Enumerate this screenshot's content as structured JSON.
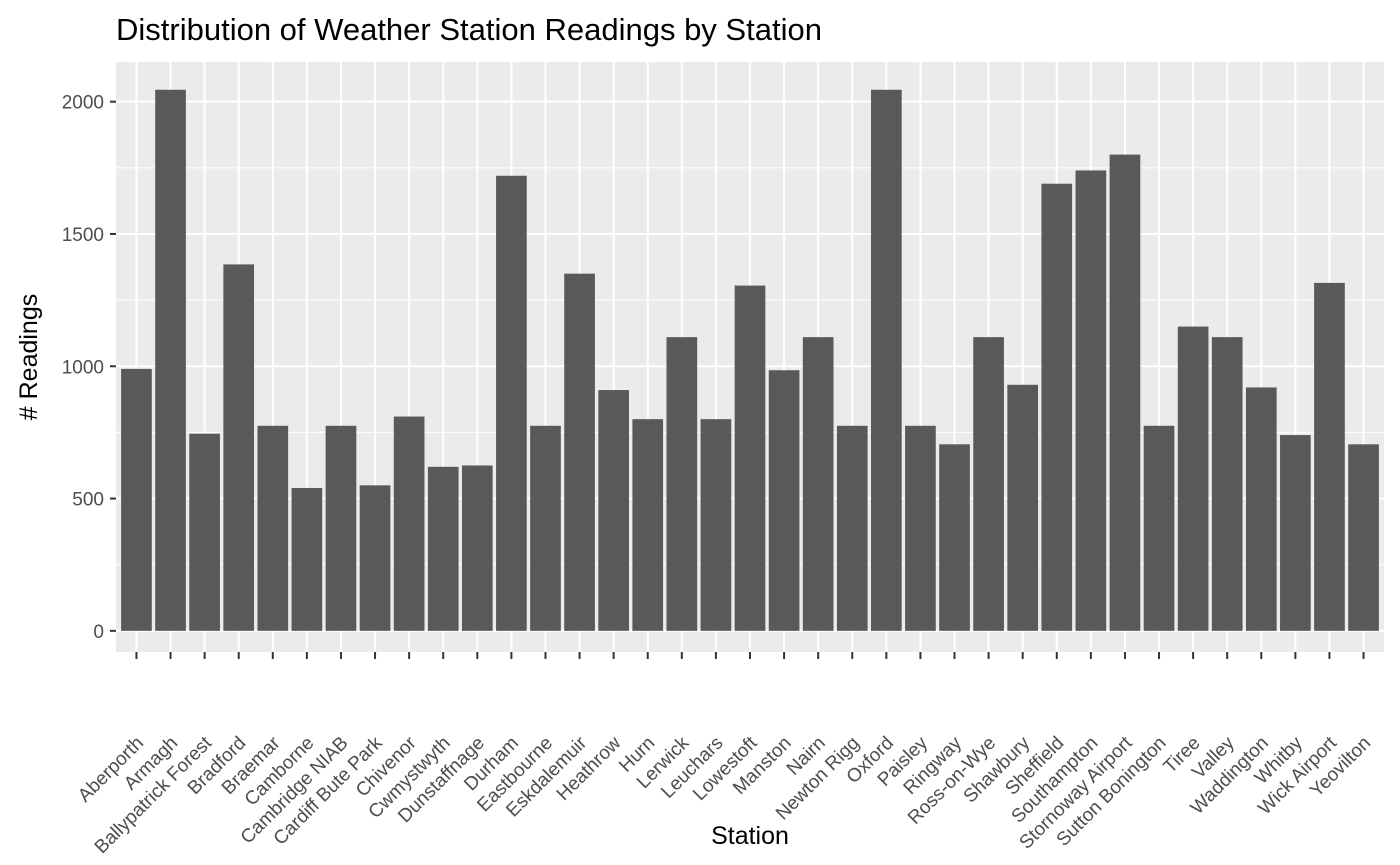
{
  "chart_data": {
    "type": "bar",
    "title": "Distribution of Weather Station Readings by Station",
    "xlabel": "Station",
    "ylabel": "# Readings",
    "ylim": [
      -80,
      2150
    ],
    "yticks": [
      0,
      500,
      1000,
      1500,
      2000
    ],
    "grid": true,
    "colors": {
      "bar": "#595959",
      "panel": "#ebebeb",
      "grid": "#ffffff"
    },
    "categories": [
      "Aberporth",
      "Armagh",
      "Ballypatrick Forest",
      "Bradford",
      "Braemar",
      "Camborne",
      "Cambridge NIAB",
      "Cardiff Bute Park",
      "Chivenor",
      "Cwmystwyth",
      "Dunstaffnage",
      "Durham",
      "Eastbourne",
      "Eskdalemuir",
      "Heathrow",
      "Hurn",
      "Lerwick",
      "Leuchars",
      "Lowestoft",
      "Manston",
      "Nairn",
      "Newton Rigg",
      "Oxford",
      "Paisley",
      "Ringway",
      "Ross-on-Wye",
      "Shawbury",
      "Sheffield",
      "Southampton",
      "Stornoway Airport",
      "Sutton Bonington",
      "Tiree",
      "Valley",
      "Waddington",
      "Whitby",
      "Wick Airport",
      "Yeovilton"
    ],
    "values": [
      990,
      2045,
      745,
      1385,
      775,
      540,
      775,
      550,
      810,
      620,
      625,
      1720,
      775,
      1350,
      910,
      800,
      1110,
      800,
      1305,
      985,
      1110,
      775,
      2045,
      775,
      705,
      1110,
      930,
      1690,
      1740,
      1800,
      775,
      1150,
      1110,
      920,
      740,
      1315,
      705
    ]
  }
}
